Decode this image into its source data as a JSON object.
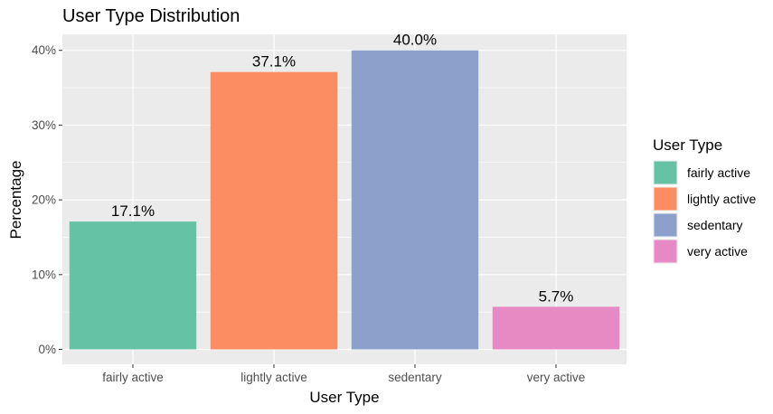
{
  "chart_data": {
    "type": "bar",
    "title": "User Type Distribution",
    "xlabel": "User Type",
    "ylabel": "Percentage",
    "categories": [
      "fairly active",
      "lightly active",
      "sedentary",
      "very active"
    ],
    "values": [
      17.1,
      37.1,
      40.0,
      5.7
    ],
    "data_labels": [
      "17.1%",
      "37.1%",
      "40.0%",
      "5.7%"
    ],
    "colors": [
      "#66c2a5",
      "#fc8d62",
      "#8da0cb",
      "#e78ac3"
    ],
    "ylim": [
      0,
      42
    ],
    "yticks": [
      0,
      10,
      20,
      30,
      40
    ],
    "ytick_labels": [
      "0%",
      "10%",
      "20%",
      "30%",
      "40%"
    ],
    "grid": true,
    "panel_background": "#ebebeb",
    "legend": {
      "title": "User Type",
      "placement": "right",
      "entries": [
        "fairly active",
        "lightly active",
        "sedentary",
        "very active"
      ]
    }
  }
}
